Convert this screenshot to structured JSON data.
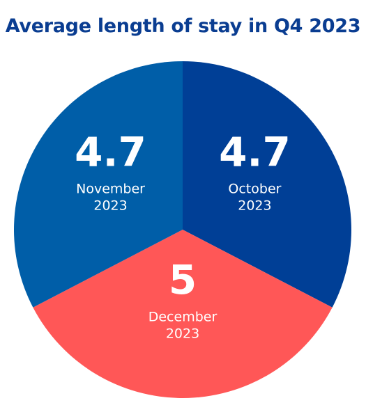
{
  "chart_data": {
    "type": "pie",
    "title": "Average length of stay in Q4 2023",
    "slices": [
      {
        "label_line1": "October",
        "label_line2": "2023",
        "value": 4.7,
        "display_value": "4.7",
        "color": "#003f96"
      },
      {
        "label_line1": "December",
        "label_line2": "2023",
        "value": 5,
        "display_value": "5",
        "color": "#ff5757"
      },
      {
        "label_line1": "November",
        "label_line2": "2023",
        "value": 4.7,
        "display_value": "4.7",
        "color": "#005ea8"
      }
    ]
  }
}
